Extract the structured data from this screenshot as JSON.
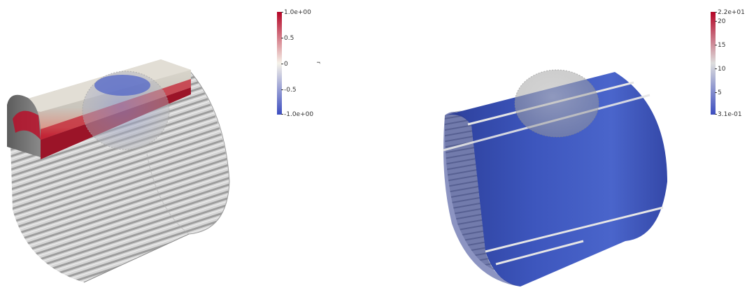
{
  "left_view": {
    "colorbar": {
      "title": "r",
      "labels": [
        "1.0e+00",
        "0.5",
        "0",
        "-0.5",
        "-1.0e+00"
      ],
      "range": [
        -1,
        1
      ],
      "colormap": [
        "#b40426",
        "#f5f2e9",
        "#3b4cc0"
      ]
    }
  },
  "right_view": {
    "colorbar": {
      "labels": [
        "2.2e+01",
        "20",
        "15",
        "10",
        "5",
        "3.1e-01"
      ],
      "range": [
        0.31,
        22
      ],
      "colormap": [
        "#b40426",
        "#dddddd",
        "#3b4cc0"
      ]
    }
  }
}
